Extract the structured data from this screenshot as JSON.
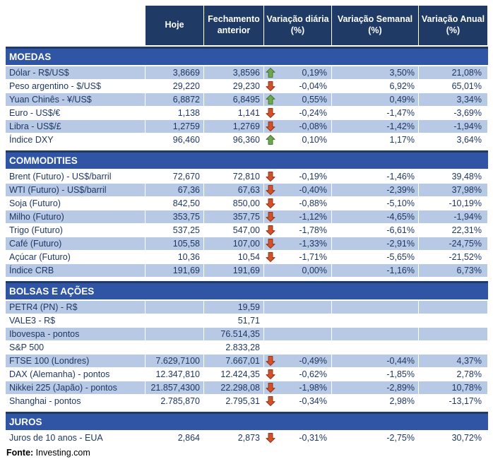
{
  "header": {
    "columns": [
      "Hoje",
      "Fechamento anterior",
      "Variação diária (%)",
      "Variação Semanal (%)",
      "Variação Anual (%)"
    ]
  },
  "colors": {
    "header_navy": "#1f3a64",
    "section_blue": "#2f55a4",
    "row_shaded": "#b7c9e5",
    "body_text": "#1f3864",
    "arrow_up_green": "#6ca84f",
    "arrow_down_red": "#d5512c"
  },
  "sections": [
    {
      "title": "MOEDAS",
      "rows": [
        {
          "label": "Dólar - R$/US$",
          "hoje": "3,8669",
          "fechamento": "3,8596",
          "arrow": "up",
          "diaria": "0,19%",
          "semanal": "3,50%",
          "anual": "21,08%",
          "shaded": true
        },
        {
          "label": "Peso argentino - $/US$",
          "hoje": "29,220",
          "fechamento": "29,230",
          "arrow": "down",
          "diaria": "-0,04%",
          "semanal": "6,92%",
          "anual": "65,01%",
          "shaded": false
        },
        {
          "label": "Yuan Chinês - ¥/US$",
          "hoje": "6,8872",
          "fechamento": "6,8495",
          "arrow": "up",
          "diaria": "0,55%",
          "semanal": "0,49%",
          "anual": "3,34%",
          "shaded": true
        },
        {
          "label": "Euro - US$/€",
          "hoje": "1,138",
          "fechamento": "1,141",
          "arrow": "down",
          "diaria": "-0,24%",
          "semanal": "-1,47%",
          "anual": "-3,69%",
          "shaded": false
        },
        {
          "label": "Libra - US$/£",
          "hoje": "1,2759",
          "fechamento": "1,2769",
          "arrow": "down",
          "diaria": "-0,08%",
          "semanal": "-1,42%",
          "anual": "-1,94%",
          "shaded": true
        },
        {
          "label": "Índice DXY",
          "hoje": "96,460",
          "fechamento": "96,360",
          "arrow": "up",
          "diaria": "0,10%",
          "semanal": "1,17%",
          "anual": "3,64%",
          "shaded": false
        }
      ]
    },
    {
      "title": "COMMODITIES",
      "rows": [
        {
          "label": "Brent (Futuro) - US$/barril",
          "hoje": "72,670",
          "fechamento": "72,810",
          "arrow": "down",
          "diaria": "-0,19%",
          "semanal": "-1,46%",
          "anual": "39,48%",
          "shaded": false
        },
        {
          "label": "WTI (Futuro) - US$/barril",
          "hoje": "67,36",
          "fechamento": "67,63",
          "arrow": "down",
          "diaria": "-0,40%",
          "semanal": "-2,39%",
          "anual": "37,98%",
          "shaded": true
        },
        {
          "label": "Soja (Futuro)",
          "hoje": "842,50",
          "fechamento": "850,00",
          "arrow": "down",
          "diaria": "-0,88%",
          "semanal": "-5,10%",
          "anual": "-10,19%",
          "shaded": false
        },
        {
          "label": "Milho (Futuro)",
          "hoje": "353,75",
          "fechamento": "357,75",
          "arrow": "down",
          "diaria": "-1,12%",
          "semanal": "-4,65%",
          "anual": "-1,94%",
          "shaded": true
        },
        {
          "label": "Trigo (Futuro)",
          "hoje": "537,25",
          "fechamento": "547,00",
          "arrow": "down",
          "diaria": "-1,78%",
          "semanal": "-6,61%",
          "anual": "22,31%",
          "shaded": false
        },
        {
          "label": "Café (Futuro)",
          "hoje": "105,58",
          "fechamento": "107,00",
          "arrow": "down",
          "diaria": "-1,33%",
          "semanal": "-2,91%",
          "anual": "-24,75%",
          "shaded": true
        },
        {
          "label": "Açúcar (Futuro)",
          "hoje": "10,36",
          "fechamento": "10,54",
          "arrow": "down",
          "diaria": "-1,71%",
          "semanal": "-5,65%",
          "anual": "-21,52%",
          "shaded": false
        },
        {
          "label": "Índice CRB",
          "hoje": "191,69",
          "fechamento": "191,69",
          "arrow": null,
          "diaria": "0,00%",
          "semanal": "-1,16%",
          "anual": "6,73%",
          "shaded": true
        }
      ]
    },
    {
      "title": "BOLSAS E AÇÕES",
      "rows": [
        {
          "label": "PETR4 (PN) - R$",
          "hoje": "",
          "fechamento": "19,59",
          "arrow": null,
          "diaria": "",
          "semanal": "",
          "anual": "",
          "shaded": true
        },
        {
          "label": "VALE3 - R$",
          "hoje": "",
          "fechamento": "51,71",
          "arrow": null,
          "diaria": "",
          "semanal": "",
          "anual": "",
          "shaded": false
        },
        {
          "label": "Ibovespa - pontos",
          "hoje": "",
          "fechamento": "76.514,35",
          "arrow": null,
          "diaria": "",
          "semanal": "",
          "anual": "",
          "shaded": true
        },
        {
          "label": "S&P 500",
          "hoje": "",
          "fechamento": "2.833,28",
          "arrow": null,
          "diaria": "",
          "semanal": "",
          "anual": "",
          "shaded": false
        },
        {
          "label": "FTSE 100 (Londres)",
          "hoje": "7.629,7100",
          "fechamento": "7.667,01",
          "arrow": "down",
          "diaria": "-0,49%",
          "semanal": "-0,44%",
          "anual": "4,37%",
          "shaded": true
        },
        {
          "label": "DAX (Alemanha) - pontos",
          "hoje": "12.347,810",
          "fechamento": "12.424,35",
          "arrow": "down",
          "diaria": "-0,62%",
          "semanal": "-1,85%",
          "anual": "2,78%",
          "shaded": false
        },
        {
          "label": "Nikkei 225 (Japão) - pontos",
          "hoje": "21.857,4300",
          "fechamento": "22.298,08",
          "arrow": "down",
          "diaria": "-1,98%",
          "semanal": "-2,89%",
          "anual": "10,78%",
          "shaded": true
        },
        {
          "label": "Shanghai - pontos",
          "hoje": "2.785,870",
          "fechamento": "2.795,31",
          "arrow": "down",
          "diaria": "-0,34%",
          "semanal": "2,98%",
          "anual": "-13,17%",
          "shaded": false
        }
      ]
    },
    {
      "title": "JUROS",
      "rows": [
        {
          "label": "Juros de 10 anos - EUA",
          "hoje": "2,864",
          "fechamento": "2,873",
          "arrow": "down",
          "diaria": "-0,31%",
          "semanal": "-2,75%",
          "anual": "30,72%",
          "shaded": false
        }
      ]
    }
  ],
  "footer": {
    "source_label": "Fonte:",
    "source_value": " Investing.com"
  }
}
